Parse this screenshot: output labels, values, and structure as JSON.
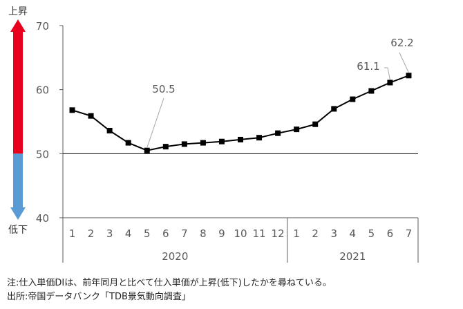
{
  "chart_data": {
    "type": "line",
    "yticks": [
      40,
      50,
      60,
      70
    ],
    "ylim": [
      40,
      70
    ],
    "reference_line": 50,
    "month_labels": [
      "1",
      "2",
      "3",
      "4",
      "5",
      "6",
      "7",
      "8",
      "9",
      "10",
      "11",
      "12",
      "1",
      "2",
      "3",
      "4",
      "5",
      "6",
      "7"
    ],
    "year_groups": [
      {
        "label": "2020",
        "months": 12
      },
      {
        "label": "2021",
        "months": 7
      }
    ],
    "values": [
      56.8,
      55.9,
      53.6,
      51.7,
      50.5,
      51.1,
      51.5,
      51.7,
      51.9,
      52.2,
      52.5,
      53.2,
      53.8,
      54.6,
      57.0,
      58.5,
      59.8,
      61.1,
      62.2
    ],
    "annotations": [
      {
        "index": 4,
        "text": "50.5"
      },
      {
        "index": 17,
        "text": "61.1"
      },
      {
        "index": 18,
        "text": "62.2"
      }
    ],
    "arrow": {
      "top_label": "上昇",
      "bottom_label": "低下",
      "up_color": "#e8001e",
      "down_color": "#5b9bd5"
    },
    "line_color": "#000000"
  },
  "notes": {
    "note": "注:仕入単価DIは、前年同月と比べて仕入単価が上昇(低下)したかを尋ねている。",
    "source": "出所:帝国データバンク「TDB景気動向調査」"
  }
}
